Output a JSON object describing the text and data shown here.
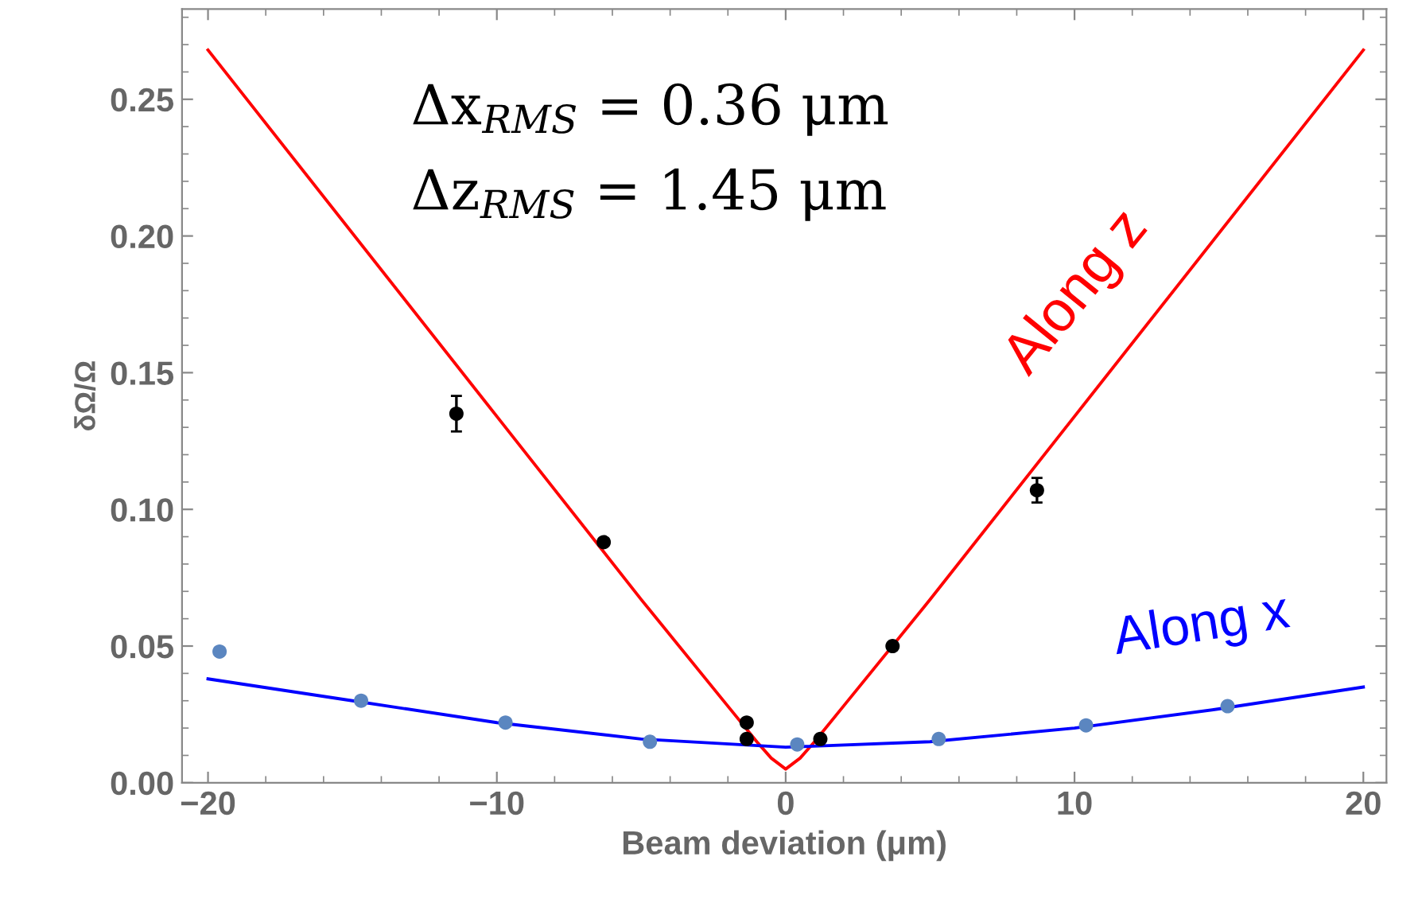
{
  "chart_data": {
    "type": "scatter",
    "xlabel": "Beam deviation (μm)",
    "ylabel": "δΩ/Ω",
    "xlim": [
      -20.9,
      20.8
    ],
    "ylim": [
      0,
      0.283
    ],
    "xticks": [
      {
        "value": -20,
        "label": "−20"
      },
      {
        "value": -10,
        "label": "−10"
      },
      0,
      10,
      20
    ],
    "yticks": [
      {
        "value": 0,
        "label": "0.00"
      },
      {
        "value": 0.05,
        "label": "0.05"
      },
      {
        "value": 0.1,
        "label": "0.10"
      },
      {
        "value": 0.15,
        "label": "0.15"
      },
      {
        "value": 0.2,
        "label": "0.20"
      },
      {
        "value": 0.25,
        "label": "0.25"
      }
    ],
    "grid": false,
    "legend": false,
    "series": [
      {
        "type": "line",
        "name": "Along z",
        "color": "#ff0000",
        "x": [
          -20,
          -10,
          -5,
          -2,
          -1,
          -0.5,
          0,
          0.5,
          1,
          2,
          5,
          10,
          20
        ],
        "values": [
          0.268,
          0.134,
          0.067,
          0.028,
          0.015,
          0.009,
          0.005,
          0.009,
          0.015,
          0.028,
          0.067,
          0.134,
          0.268
        ]
      },
      {
        "type": "line",
        "name": "Along x",
        "color": "#0000ff",
        "x": [
          -20,
          -15,
          -10,
          -5,
          0,
          5,
          10,
          15,
          20
        ],
        "values": [
          0.038,
          0.03,
          0.022,
          0.016,
          0.013,
          0.015,
          0.02,
          0.027,
          0.035
        ]
      },
      {
        "color": "#000000",
        "marker": "circle",
        "x": [
          -11.4,
          -6.3,
          -1.35,
          -1.35,
          1.2,
          3.7,
          8.7
        ],
        "values": [
          0.135,
          0.088,
          0.022,
          0.016,
          0.016,
          0.05,
          0.107
        ],
        "errors": [
          0.0065,
          0.001,
          null,
          null,
          null,
          null,
          0.0045
        ]
      },
      {
        "color": "#5b86c0",
        "marker": "circle",
        "x": [
          -19.6,
          -14.7,
          -9.7,
          -4.7,
          0.4,
          5.3,
          10.4,
          15.3
        ],
        "values": [
          0.048,
          0.03,
          0.022,
          0.015,
          0.014,
          0.016,
          0.021,
          0.028
        ]
      }
    ],
    "annotations": [
      "Δx$_{RMS}$ = 0.36 μm",
      "Δz$_{RMS}$ = 1.45 μm"
    ]
  }
}
